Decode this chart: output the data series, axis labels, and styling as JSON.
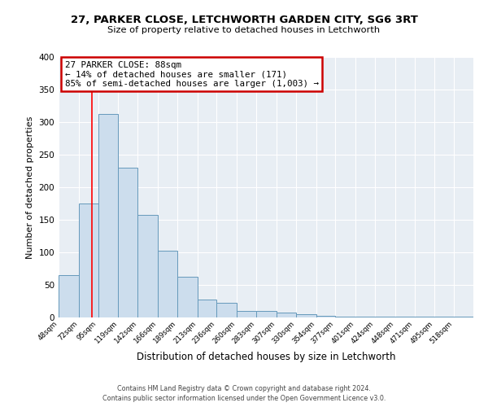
{
  "title1": "27, PARKER CLOSE, LETCHWORTH GARDEN CITY, SG6 3RT",
  "title2": "Size of property relative to detached houses in Letchworth",
  "xlabel": "Distribution of detached houses by size in Letchworth",
  "ylabel": "Number of detached properties",
  "bar_values": [
    65,
    175,
    313,
    230,
    158,
    103,
    62,
    28,
    22,
    10,
    10,
    7,
    5,
    2,
    1,
    1,
    1,
    1,
    1,
    1,
    1
  ],
  "bin_edges": [
    48,
    72,
    95,
    119,
    142,
    166,
    189,
    213,
    236,
    260,
    283,
    307,
    330,
    354,
    377,
    401,
    424,
    448,
    471,
    495,
    518,
    541
  ],
  "tick_labels": [
    "48sqm",
    "72sqm",
    "95sqm",
    "119sqm",
    "142sqm",
    "166sqm",
    "189sqm",
    "213sqm",
    "236sqm",
    "260sqm",
    "283sqm",
    "307sqm",
    "330sqm",
    "354sqm",
    "377sqm",
    "401sqm",
    "424sqm",
    "448sqm",
    "471sqm",
    "495sqm",
    "518sqm"
  ],
  "bar_color": "#ccdded",
  "bar_edge_color": "#6699bb",
  "bar_edge_width": 0.7,
  "red_line_x": 88,
  "annotation_box_title": "27 PARKER CLOSE: 88sqm",
  "annotation_line1": "← 14% of detached houses are smaller (171)",
  "annotation_line2": "85% of semi-detached houses are larger (1,003) →",
  "annotation_box_color": "#ffffff",
  "annotation_box_edge_color": "#cc0000",
  "ylim": [
    0,
    400
  ],
  "yticks": [
    0,
    50,
    100,
    150,
    200,
    250,
    300,
    350,
    400
  ],
  "background_color": "#e8eef4",
  "grid_color": "#ffffff",
  "fig_background": "#ffffff",
  "footer1": "Contains HM Land Registry data © Crown copyright and database right 2024.",
  "footer2": "Contains public sector information licensed under the Open Government Licence v3.0."
}
